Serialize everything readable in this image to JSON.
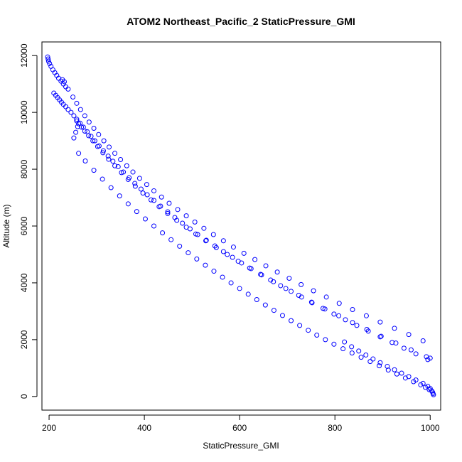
{
  "chart_data": {
    "type": "scatter",
    "title": "ATOM2 Northeast_Pacific_2 StaticPressure_GMI",
    "xlabel": "StaticPressure_GMI",
    "ylabel": "Altitude (m)",
    "xlim": [
      185,
      1022
    ],
    "ylim": [
      -480,
      12480
    ],
    "x_ticks": [
      200,
      400,
      600,
      800,
      1000
    ],
    "y_ticks": [
      0,
      2000,
      4000,
      6000,
      8000,
      10000,
      12000
    ],
    "point_color": "#0000ff",
    "marker": "open-circle",
    "grid": false,
    "series": [
      {
        "points": [
          [
            197,
            11950
          ],
          [
            198,
            11880
          ],
          [
            199,
            11800
          ],
          [
            201,
            11720
          ],
          [
            204,
            11620
          ],
          [
            208,
            11500
          ],
          [
            212,
            11400
          ],
          [
            216,
            11300
          ],
          [
            220,
            11200
          ],
          [
            225,
            11100
          ],
          [
            230,
            11000
          ],
          [
            235,
            10900
          ],
          [
            240,
            10820
          ],
          [
            228,
            11150
          ],
          [
            232,
            11080
          ],
          [
            210,
            10680
          ],
          [
            214,
            10600
          ],
          [
            218,
            10520
          ],
          [
            222,
            10440
          ],
          [
            226,
            10360
          ],
          [
            230,
            10280
          ],
          [
            235,
            10200
          ],
          [
            240,
            10100
          ],
          [
            246,
            10000
          ],
          [
            252,
            9880
          ],
          [
            258,
            9760
          ],
          [
            265,
            9620
          ],
          [
            272,
            9480
          ],
          [
            280,
            9320
          ],
          [
            288,
            9160
          ],
          [
            296,
            9000
          ],
          [
            305,
            8820
          ],
          [
            314,
            8650
          ],
          [
            324,
            8460
          ],
          [
            334,
            8280
          ],
          [
            345,
            8090
          ],
          [
            356,
            7900
          ],
          [
            368,
            7700
          ],
          [
            380,
            7500
          ],
          [
            393,
            7300
          ],
          [
            406,
            7100
          ],
          [
            420,
            6900
          ],
          [
            434,
            6700
          ],
          [
            449,
            6500
          ],
          [
            464,
            6300
          ],
          [
            480,
            6100
          ],
          [
            496,
            5900
          ],
          [
            512,
            5700
          ],
          [
            530,
            5500
          ],
          [
            548,
            5300
          ],
          [
            566,
            5100
          ],
          [
            585,
            4900
          ],
          [
            604,
            4700
          ],
          [
            624,
            4500
          ],
          [
            644,
            4300
          ],
          [
            665,
            4100
          ],
          [
            686,
            3900
          ],
          [
            708,
            3700
          ],
          [
            730,
            3500
          ],
          [
            752,
            3300
          ],
          [
            775,
            3100
          ],
          [
            798,
            2900
          ],
          [
            822,
            2700
          ],
          [
            846,
            2500
          ],
          [
            870,
            2300
          ],
          [
            895,
            2100
          ],
          [
            920,
            1900
          ],
          [
            945,
            1700
          ],
          [
            970,
            1500
          ],
          [
            995,
            1300
          ],
          [
            250,
            10540
          ],
          [
            258,
            10320
          ],
          [
            266,
            10100
          ],
          [
            275,
            9880
          ],
          [
            284,
            9660
          ],
          [
            294,
            9440
          ],
          [
            304,
            9220
          ],
          [
            315,
            9000
          ],
          [
            326,
            8780
          ],
          [
            338,
            8560
          ],
          [
            350,
            8340
          ],
          [
            363,
            8120
          ],
          [
            376,
            7900
          ],
          [
            390,
            7680
          ],
          [
            405,
            7460
          ],
          [
            420,
            7240
          ],
          [
            436,
            7020
          ],
          [
            452,
            6800
          ],
          [
            470,
            6580
          ],
          [
            488,
            6360
          ],
          [
            506,
            6140
          ],
          [
            525,
            5920
          ],
          [
            545,
            5700
          ],
          [
            566,
            5480
          ],
          [
            587,
            5260
          ],
          [
            609,
            5040
          ],
          [
            632,
            4820
          ],
          [
            655,
            4600
          ],
          [
            679,
            4380
          ],
          [
            704,
            4160
          ],
          [
            729,
            3940
          ],
          [
            755,
            3720
          ],
          [
            782,
            3500
          ],
          [
            809,
            3280
          ],
          [
            837,
            3060
          ],
          [
            866,
            2840
          ],
          [
            895,
            2620
          ],
          [
            925,
            2400
          ],
          [
            955,
            2180
          ],
          [
            985,
            1960
          ],
          [
            258,
            9700
          ],
          [
            262,
            9600
          ],
          [
            268,
            9480
          ],
          [
            275,
            9340
          ],
          [
            283,
            9180
          ],
          [
            292,
            9000
          ],
          [
            302,
            8800
          ],
          [
            313,
            8580
          ],
          [
            325,
            8350
          ],
          [
            338,
            8120
          ],
          [
            352,
            7880
          ],
          [
            366,
            7640
          ],
          [
            381,
            7400
          ],
          [
            397,
            7160
          ],
          [
            414,
            6920
          ],
          [
            431,
            6680
          ],
          [
            449,
            6440
          ],
          [
            468,
            6200
          ],
          [
            488,
            5960
          ],
          [
            508,
            5720
          ],
          [
            529,
            5480
          ],
          [
            551,
            5240
          ],
          [
            574,
            5000
          ],
          [
            597,
            4760
          ],
          [
            621,
            4520
          ],
          [
            646,
            4280
          ],
          [
            671,
            4040
          ],
          [
            697,
            3800
          ],
          [
            724,
            3560
          ],
          [
            751,
            3320
          ],
          [
            779,
            3080
          ],
          [
            808,
            2840
          ],
          [
            837,
            2600
          ],
          [
            867,
            2360
          ],
          [
            897,
            2120
          ],
          [
            928,
            1880
          ],
          [
            960,
            1640
          ],
          [
            992,
            1400
          ],
          [
            1000,
            1350
          ],
          [
            820,
            1920
          ],
          [
            835,
            1750
          ],
          [
            850,
            1600
          ],
          [
            865,
            1460
          ],
          [
            880,
            1320
          ],
          [
            895,
            1190
          ],
          [
            910,
            1060
          ],
          [
            925,
            940
          ],
          [
            940,
            820
          ],
          [
            955,
            700
          ],
          [
            970,
            580
          ],
          [
            985,
            460
          ],
          [
            995,
            360
          ],
          [
            1000,
            280
          ],
          [
            1003,
            200
          ],
          [
            1005,
            150
          ],
          [
            1006,
            100
          ],
          [
            1007,
            60
          ],
          [
            998,
            240
          ],
          [
            990,
            320
          ],
          [
            980,
            410
          ],
          [
            965,
            520
          ],
          [
            948,
            650
          ],
          [
            930,
            790
          ],
          [
            912,
            930
          ],
          [
            893,
            1080
          ],
          [
            874,
            1230
          ],
          [
            855,
            1380
          ],
          [
            836,
            1530
          ],
          [
            817,
            1680
          ],
          [
            798,
            1840
          ],
          [
            780,
            2000
          ],
          [
            762,
            2160
          ],
          [
            744,
            2330
          ],
          [
            726,
            2500
          ],
          [
            708,
            2670
          ],
          [
            690,
            2850
          ],
          [
            672,
            3030
          ],
          [
            654,
            3220
          ],
          [
            636,
            3410
          ],
          [
            618,
            3600
          ],
          [
            600,
            3800
          ],
          [
            582,
            4000
          ],
          [
            564,
            4200
          ],
          [
            546,
            4410
          ],
          [
            528,
            4620
          ],
          [
            510,
            4840
          ],
          [
            492,
            5060
          ],
          [
            474,
            5290
          ],
          [
            456,
            5520
          ],
          [
            438,
            5760
          ],
          [
            420,
            6000
          ],
          [
            402,
            6250
          ],
          [
            384,
            6510
          ],
          [
            366,
            6780
          ],
          [
            348,
            7060
          ],
          [
            330,
            7350
          ],
          [
            312,
            7650
          ],
          [
            294,
            7960
          ],
          [
            276,
            8290
          ],
          [
            262,
            8560
          ],
          [
            252,
            9100
          ],
          [
            256,
            9300
          ],
          [
            260,
            9500
          ]
        ]
      }
    ]
  }
}
